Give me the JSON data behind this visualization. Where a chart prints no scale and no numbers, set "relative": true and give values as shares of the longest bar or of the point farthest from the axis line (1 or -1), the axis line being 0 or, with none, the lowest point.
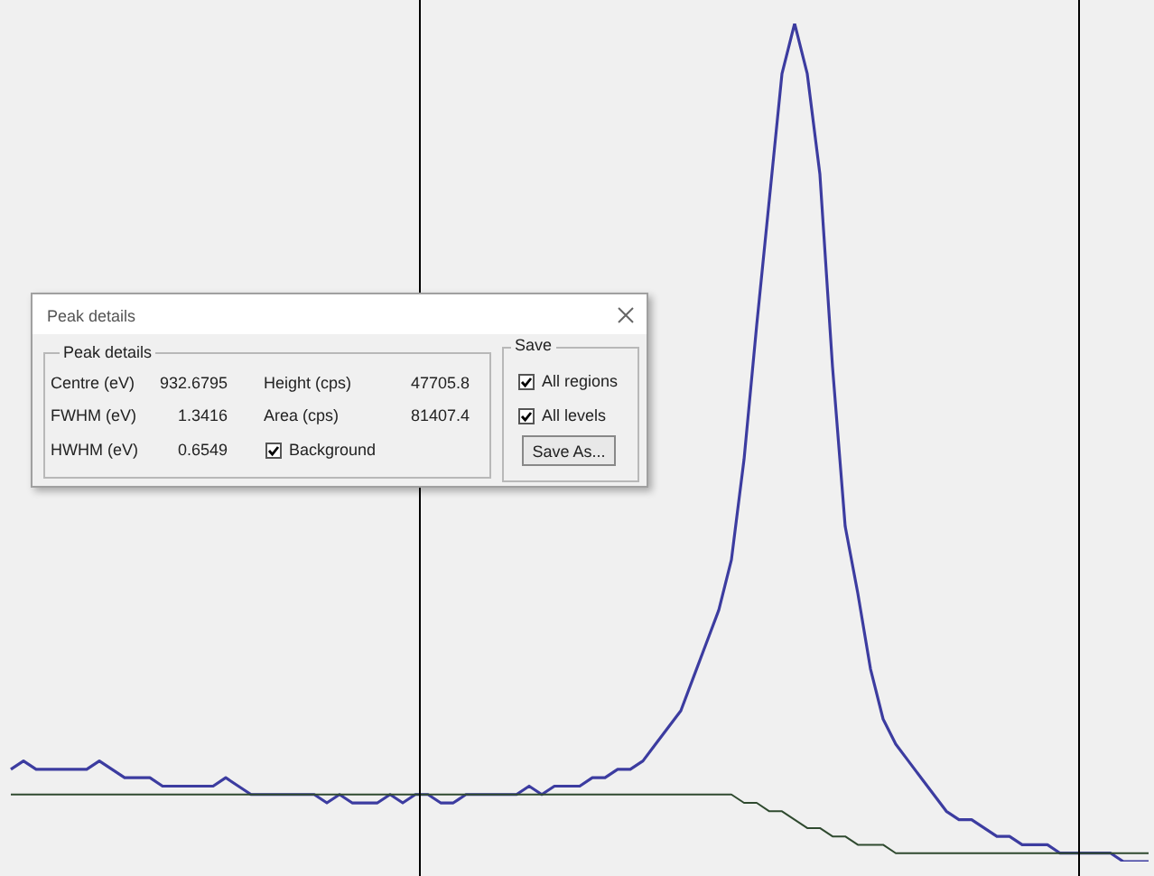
{
  "chart_data": {
    "type": "line",
    "relative": true,
    "marker": "none",
    "line_style": "solid",
    "legend": false,
    "categories": [
      null,
      null,
      null,
      null,
      null,
      null,
      null,
      null,
      null,
      null,
      null,
      null,
      null,
      null,
      null,
      null,
      null,
      null,
      null,
      null,
      null,
      null,
      null,
      null,
      null,
      null,
      null,
      null,
      null,
      null,
      null,
      null,
      null,
      null,
      null,
      null,
      null,
      null,
      null,
      null,
      null,
      null,
      null,
      null,
      null,
      null,
      null,
      null,
      null,
      null,
      null,
      null,
      null,
      null,
      null,
      null,
      null,
      null,
      null,
      null,
      null,
      null,
      null,
      null,
      null,
      null,
      null,
      null,
      null,
      null,
      null,
      null,
      null,
      null,
      null,
      null,
      null,
      null,
      null,
      null,
      null,
      null,
      null,
      null,
      null,
      null,
      null,
      null,
      null,
      null,
      null
    ],
    "series": [
      {
        "color": "#3c3ca0",
        "values": [
          0.11,
          0.12,
          0.11,
          0.11,
          0.11,
          0.11,
          0.11,
          0.12,
          0.11,
          0.1,
          0.1,
          0.1,
          0.09,
          0.09,
          0.09,
          0.09,
          0.09,
          0.1,
          0.09,
          0.08,
          0.08,
          0.08,
          0.08,
          0.08,
          0.08,
          0.07,
          0.08,
          0.07,
          0.07,
          0.07,
          0.08,
          0.07,
          0.08,
          0.08,
          0.07,
          0.07,
          0.08,
          0.08,
          0.08,
          0.08,
          0.08,
          0.09,
          0.08,
          0.09,
          0.09,
          0.09,
          0.1,
          0.1,
          0.11,
          0.11,
          0.12,
          0.14,
          0.16,
          0.18,
          0.22,
          0.26,
          0.3,
          0.36,
          0.48,
          0.64,
          0.79,
          0.94,
          1,
          0.94,
          0.82,
          0.59,
          0.4,
          0.32,
          0.23,
          0.17,
          0.14,
          0.12,
          0.1,
          0.08,
          0.06,
          0.05,
          0.05,
          0.04,
          0.03,
          0.03,
          0.02,
          0.02,
          0.02,
          0.01,
          0.01,
          0.01,
          0.01,
          0.01,
          0.0,
          0,
          0.0
        ]
      },
      {
        "color": "#2f4a2f",
        "values": [
          0.08,
          0.08,
          0.08,
          0.08,
          0.08,
          0.08,
          0.08,
          0.08,
          0.08,
          0.08,
          0.08,
          0.08,
          0.08,
          0.08,
          0.08,
          0.08,
          0.08,
          0.08,
          0.08,
          0.08,
          0.08,
          0.08,
          0.08,
          0.08,
          0.08,
          0.08,
          0.08,
          0.08,
          0.08,
          0.08,
          0.08,
          0.08,
          0.08,
          0.08,
          0.08,
          0.08,
          0.08,
          0.08,
          0.08,
          0.08,
          0.08,
          0.08,
          0.08,
          0.08,
          0.08,
          0.08,
          0.08,
          0.08,
          0.08,
          0.08,
          0.08,
          0.08,
          0.08,
          0.08,
          0.08,
          0.08,
          0.08,
          0.08,
          0.07,
          0.07,
          0.06,
          0.06,
          0.05,
          0.04,
          0.04,
          0.03,
          0.03,
          0.02,
          0.02,
          0.02,
          0.01,
          0.01,
          0.01,
          0.01,
          0.01,
          0.01,
          0.01,
          0.01,
          0.01,
          0.01,
          0.01,
          0.01,
          0.01,
          0.01,
          0.01,
          0.01,
          0.01,
          0.01,
          0.01,
          0.01,
          0.01
        ]
      }
    ],
    "annotations": [
      "Peak details",
      "Peak details",
      "Centre (eV)",
      "932.6795",
      "Height (cps)",
      "47705.8",
      "FWHM (eV)",
      "1.3416",
      "Area (cps)",
      "81407.4",
      "HWHM (eV)",
      "0.6549",
      "Background",
      "Save",
      "All regions",
      "All levels",
      "Save As..."
    ]
  }
}
